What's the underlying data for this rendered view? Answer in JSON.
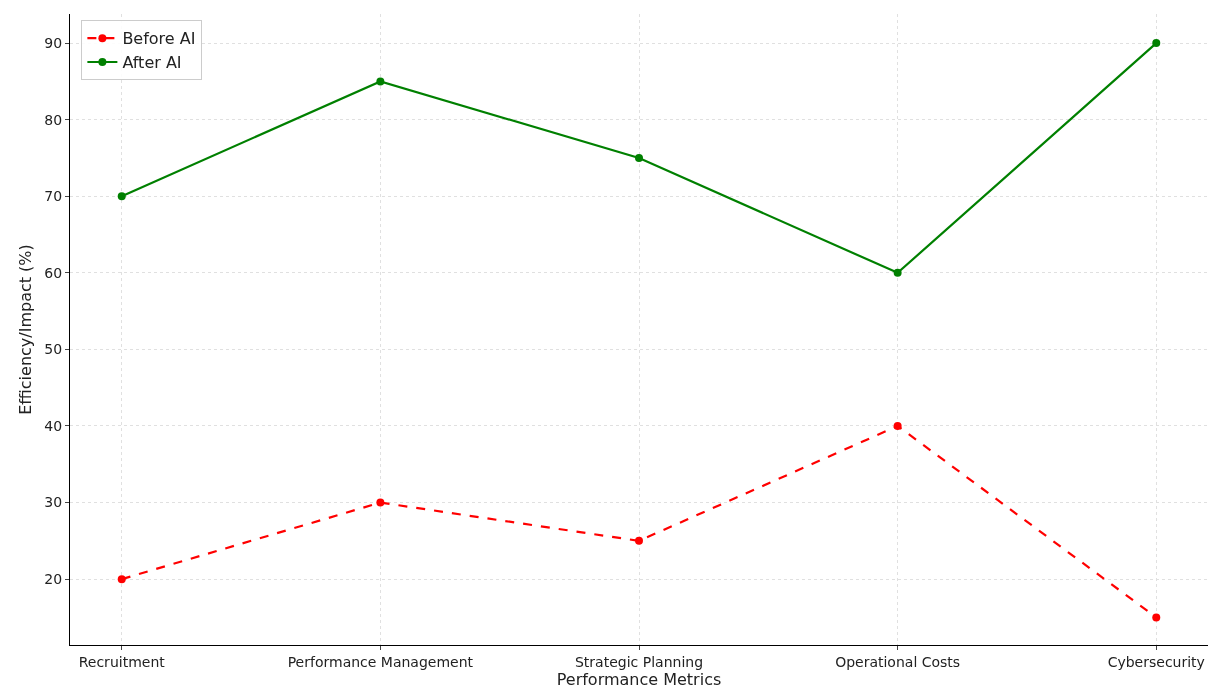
{
  "chart_data": {
    "type": "line",
    "xlabel": "Performance Metrics",
    "ylabel": "Efficiency/Impact (%)",
    "categories": [
      "Recruitment",
      "Performance Management",
      "Strategic Planning",
      "Operational Costs",
      "Cybersecurity"
    ],
    "series": [
      {
        "name": "Before AI",
        "color": "#ff0000",
        "line_style": "dashed",
        "values": [
          20,
          30,
          25,
          40,
          15
        ]
      },
      {
        "name": "After AI",
        "color": "#008000",
        "line_style": "solid",
        "values": [
          70,
          85,
          75,
          60,
          90
        ]
      }
    ],
    "ylim": [
      11.4,
      93.8
    ],
    "yticks": [
      20,
      30,
      40,
      50,
      60,
      70,
      80,
      90
    ],
    "grid": true,
    "legend": "top left",
    "marker": "circle"
  }
}
